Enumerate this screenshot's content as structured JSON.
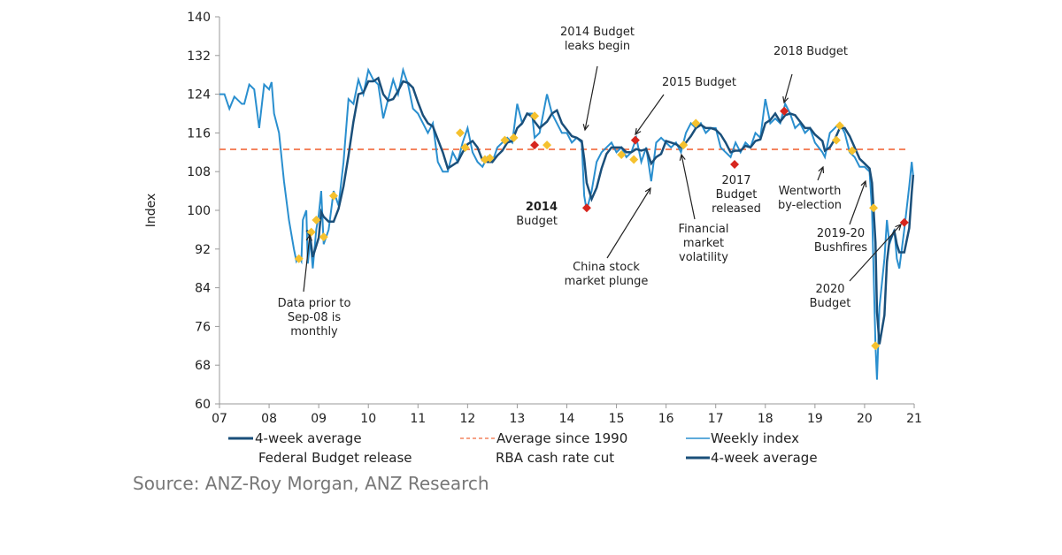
{
  "chart_data": {
    "type": "line",
    "ylabel": "Index",
    "ylim": [
      60,
      140
    ],
    "yticks": [
      60,
      68,
      76,
      84,
      92,
      100,
      108,
      116,
      124,
      132,
      140
    ],
    "xlim": [
      2007,
      2021
    ],
    "xticks": [
      "07",
      "08",
      "09",
      "10",
      "11",
      "12",
      "13",
      "14",
      "15",
      "16",
      "17",
      "18",
      "19",
      "20",
      "21"
    ],
    "average_since_1990": 112.6,
    "series": [
      {
        "name": "Weekly index",
        "color": "#2a8fcf",
        "points": [
          [
            2007.0,
            124
          ],
          [
            2007.1,
            124
          ],
          [
            2007.2,
            121
          ],
          [
            2007.3,
            123.5
          ],
          [
            2007.45,
            122
          ],
          [
            2007.5,
            122
          ],
          [
            2007.6,
            126
          ],
          [
            2007.7,
            125
          ],
          [
            2007.8,
            117
          ],
          [
            2007.9,
            126
          ],
          [
            2008.0,
            125
          ],
          [
            2008.05,
            126.5
          ],
          [
            2008.1,
            120
          ],
          [
            2008.2,
            116
          ],
          [
            2008.3,
            106
          ],
          [
            2008.4,
            98
          ],
          [
            2008.5,
            92
          ],
          [
            2008.55,
            89.5
          ],
          [
            2008.6,
            90.5
          ],
          [
            2008.65,
            89.5
          ],
          [
            2008.68,
            98
          ],
          [
            2008.75,
            100
          ],
          [
            2008.78,
            89
          ],
          [
            2008.83,
            94
          ],
          [
            2008.88,
            88
          ],
          [
            2008.95,
            96
          ],
          [
            2009.0,
            99
          ],
          [
            2009.05,
            104
          ],
          [
            2009.1,
            93
          ],
          [
            2009.2,
            96
          ],
          [
            2009.3,
            104
          ],
          [
            2009.4,
            101
          ],
          [
            2009.5,
            110
          ],
          [
            2009.6,
            123
          ],
          [
            2009.7,
            122
          ],
          [
            2009.8,
            127
          ],
          [
            2009.9,
            124
          ],
          [
            2010.0,
            129
          ],
          [
            2010.1,
            127
          ],
          [
            2010.2,
            126
          ],
          [
            2010.3,
            119
          ],
          [
            2010.4,
            123
          ],
          [
            2010.5,
            127
          ],
          [
            2010.6,
            124
          ],
          [
            2010.7,
            129
          ],
          [
            2010.8,
            126
          ],
          [
            2010.9,
            121
          ],
          [
            2011.0,
            120
          ],
          [
            2011.1,
            118
          ],
          [
            2011.2,
            116
          ],
          [
            2011.3,
            118
          ],
          [
            2011.4,
            110
          ],
          [
            2011.5,
            108
          ],
          [
            2011.6,
            108
          ],
          [
            2011.7,
            112
          ],
          [
            2011.8,
            110
          ],
          [
            2011.9,
            114
          ],
          [
            2012.0,
            117
          ],
          [
            2012.1,
            112
          ],
          [
            2012.2,
            110
          ],
          [
            2012.3,
            109
          ],
          [
            2012.4,
            111
          ],
          [
            2012.5,
            110
          ],
          [
            2012.6,
            113
          ],
          [
            2012.7,
            114
          ],
          [
            2012.8,
            115
          ],
          [
            2012.9,
            114
          ],
          [
            2013.0,
            122
          ],
          [
            2013.1,
            118
          ],
          [
            2013.2,
            120
          ],
          [
            2013.3,
            120
          ],
          [
            2013.35,
            115
          ],
          [
            2013.45,
            116
          ],
          [
            2013.6,
            124
          ],
          [
            2013.7,
            120
          ],
          [
            2013.8,
            118
          ],
          [
            2013.9,
            116
          ],
          [
            2014.0,
            116
          ],
          [
            2014.1,
            114
          ],
          [
            2014.2,
            115
          ],
          [
            2014.3,
            114
          ],
          [
            2014.35,
            103
          ],
          [
            2014.4,
            100
          ],
          [
            2014.5,
            104
          ],
          [
            2014.6,
            110
          ],
          [
            2014.7,
            112
          ],
          [
            2014.8,
            113
          ],
          [
            2014.9,
            114
          ],
          [
            2015.0,
            112
          ],
          [
            2015.1,
            113
          ],
          [
            2015.2,
            111
          ],
          [
            2015.3,
            112
          ],
          [
            2015.4,
            115
          ],
          [
            2015.5,
            110
          ],
          [
            2015.6,
            113
          ],
          [
            2015.7,
            106
          ],
          [
            2015.8,
            114
          ],
          [
            2015.9,
            115
          ],
          [
            2016.0,
            114
          ],
          [
            2016.1,
            113
          ],
          [
            2016.2,
            114
          ],
          [
            2016.3,
            112
          ],
          [
            2016.4,
            116
          ],
          [
            2016.5,
            118
          ],
          [
            2016.6,
            117
          ],
          [
            2016.7,
            118
          ],
          [
            2016.8,
            116
          ],
          [
            2016.9,
            117
          ],
          [
            2017.0,
            117
          ],
          [
            2017.1,
            113
          ],
          [
            2017.2,
            112
          ],
          [
            2017.3,
            111
          ],
          [
            2017.4,
            114
          ],
          [
            2017.5,
            112
          ],
          [
            2017.6,
            114
          ],
          [
            2017.7,
            113
          ],
          [
            2017.8,
            116
          ],
          [
            2017.9,
            115
          ],
          [
            2018.0,
            123
          ],
          [
            2018.1,
            118
          ],
          [
            2018.2,
            119
          ],
          [
            2018.3,
            118
          ],
          [
            2018.4,
            122
          ],
          [
            2018.5,
            120
          ],
          [
            2018.6,
            117
          ],
          [
            2018.7,
            118
          ],
          [
            2018.8,
            116
          ],
          [
            2018.9,
            117
          ],
          [
            2019.0,
            114
          ],
          [
            2019.15,
            112
          ],
          [
            2019.2,
            111
          ],
          [
            2019.3,
            116
          ],
          [
            2019.4,
            117
          ],
          [
            2019.5,
            118
          ],
          [
            2019.6,
            116
          ],
          [
            2019.7,
            112
          ],
          [
            2019.8,
            111
          ],
          [
            2019.9,
            109
          ],
          [
            2020.0,
            109
          ],
          [
            2020.1,
            108
          ],
          [
            2020.15,
            100
          ],
          [
            2020.22,
            72
          ],
          [
            2020.25,
            65
          ],
          [
            2020.3,
            80
          ],
          [
            2020.4,
            90
          ],
          [
            2020.45,
            98
          ],
          [
            2020.5,
            93
          ],
          [
            2020.6,
            96
          ],
          [
            2020.65,
            90
          ],
          [
            2020.7,
            88
          ],
          [
            2020.8,
            96
          ],
          [
            2020.9,
            105
          ],
          [
            2020.95,
            110
          ],
          [
            2020.98,
            107
          ]
        ]
      },
      {
        "name": "4-week average",
        "color": "#1a4f7a"
      }
    ],
    "federal_budget_release": {
      "color": "#d7261e",
      "points": [
        [
          2013.35,
          113.5
        ],
        [
          2014.4,
          100.5
        ],
        [
          2015.38,
          114.5
        ],
        [
          2017.38,
          109.5
        ],
        [
          2018.38,
          120.5
        ],
        [
          2020.8,
          97.5
        ]
      ]
    },
    "rba_cash_rate_cut": {
      "color": "#f5c12e",
      "points": [
        [
          2008.6,
          90
        ],
        [
          2008.85,
          95.5
        ],
        [
          2008.95,
          98
        ],
        [
          2009.1,
          94.5
        ],
        [
          2009.3,
          103
        ],
        [
          2011.85,
          116
        ],
        [
          2011.95,
          113
        ],
        [
          2012.35,
          110.5
        ],
        [
          2012.45,
          110.8
        ],
        [
          2012.75,
          114.5
        ],
        [
          2012.93,
          115
        ],
        [
          2013.35,
          119.5
        ],
        [
          2013.6,
          113.5
        ],
        [
          2015.1,
          111.5
        ],
        [
          2015.35,
          110.5
        ],
        [
          2016.35,
          113.5
        ],
        [
          2016.6,
          118
        ],
        [
          2019.43,
          114.5
        ],
        [
          2019.5,
          117.5
        ],
        [
          2019.75,
          112.3
        ],
        [
          2020.18,
          100.5
        ],
        [
          2020.22,
          72
        ]
      ]
    },
    "annotations": {
      "monthly": [
        "Data prior to",
        "Sep-08 is",
        "monthly"
      ],
      "leaks": [
        "2014 Budget",
        "leaks begin"
      ],
      "b2014": [
        "2014",
        "Budget"
      ],
      "b2015": [
        "2015 Budget"
      ],
      "china": [
        "China stock",
        "market plunge"
      ],
      "fin": [
        "Financial",
        "market",
        "volatility"
      ],
      "b2017": [
        "2017",
        "Budget",
        "released"
      ],
      "b2018": [
        "2018 Budget"
      ],
      "went": [
        "Wentworth",
        "by-election"
      ],
      "bush": [
        "2019-20",
        "Bushfires"
      ],
      "b2020": [
        "2020",
        "Budget"
      ]
    },
    "legend": [
      "4-week average",
      "Average since 1990",
      "Weekly index",
      "Federal Budget release",
      "RBA cash rate cut",
      "4-week average"
    ]
  },
  "source": "Source: ANZ-Roy Morgan, ANZ Research"
}
